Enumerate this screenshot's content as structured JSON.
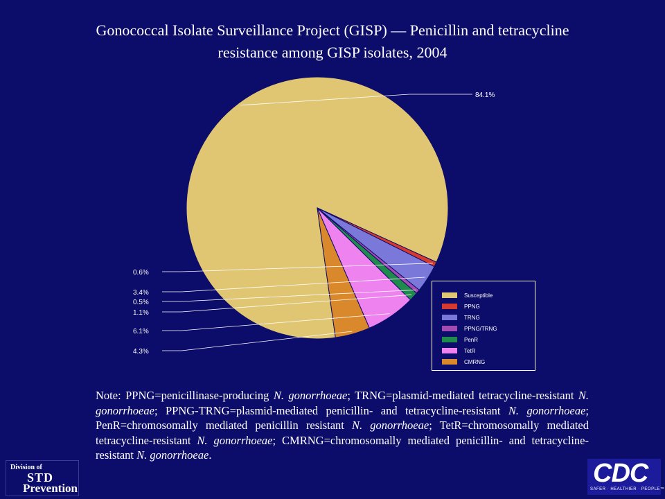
{
  "title": {
    "line1": "Gonococcal Isolate Surveillance Project (GISP) — Penicillin and tetracycline",
    "line2": "resistance among GISP isolates, 2004"
  },
  "chart_data": {
    "type": "pie",
    "title": "Gonococcal Isolate Surveillance Project (GISP) — Penicillin and tetracycline resistance among GISP isolates, 2004",
    "slices": [
      {
        "name": "Susceptible",
        "value": 84.1,
        "label": "84.1%",
        "color": "#e0c672"
      },
      {
        "name": "PPNG",
        "value": 0.6,
        "label": "0.6%",
        "color": "#d63a2e"
      },
      {
        "name": "TRNG",
        "value": 3.4,
        "label": "3.4%",
        "color": "#7a78d8"
      },
      {
        "name": "PPNG/TRNG",
        "value": 0.5,
        "label": "0.5%",
        "color": "#a24bb2"
      },
      {
        "name": "PenR",
        "value": 1.1,
        "label": "1.1%",
        "color": "#1e8a4c"
      },
      {
        "name": "TetR",
        "value": 6.1,
        "label": "6.1%",
        "color": "#ee82ee"
      },
      {
        "name": "CMRNG",
        "value": 4.3,
        "label": "4.3%",
        "color": "#d9892c"
      }
    ],
    "legend_position": "bottom-right"
  },
  "legend": {
    "items": [
      "Susceptible",
      "PPNG",
      "TRNG",
      "PPNG/TRNG",
      "PenR",
      "TetR",
      "CMRNG"
    ]
  },
  "note": {
    "p1": "Note: PPNG=penicillinase-producing ",
    "i1": "N. gonorrhoeae",
    "p2": "; TRNG=plasmid-mediated tetracycline-resistant ",
    "i2": "N. gonorrhoeae",
    "p3": "; PPNG-TRNG=plasmid-mediated penicillin- and tetracycline-resistant ",
    "i3": "N. gonorrhoeae",
    "p4": "; PenR=chromosomally mediated penicillin resistant ",
    "i4": "N. gonorrhoeae",
    "p5": "; TetR=chromosomally mediated tetracycline-resistant ",
    "i5": "N. gonorrhoeae",
    "p6": "; CMRNG=chromosomally mediated penicillin- and tetracycline-resistant ",
    "i6": "N. gonorrhoeae",
    "p7": "."
  },
  "logos": {
    "std_division": "Division of",
    "std_name": "STD",
    "std_prevention": "Prevention",
    "cdc": "CDC",
    "cdc_tagline": "SAFER · HEALTHIER · PEOPLE™"
  }
}
